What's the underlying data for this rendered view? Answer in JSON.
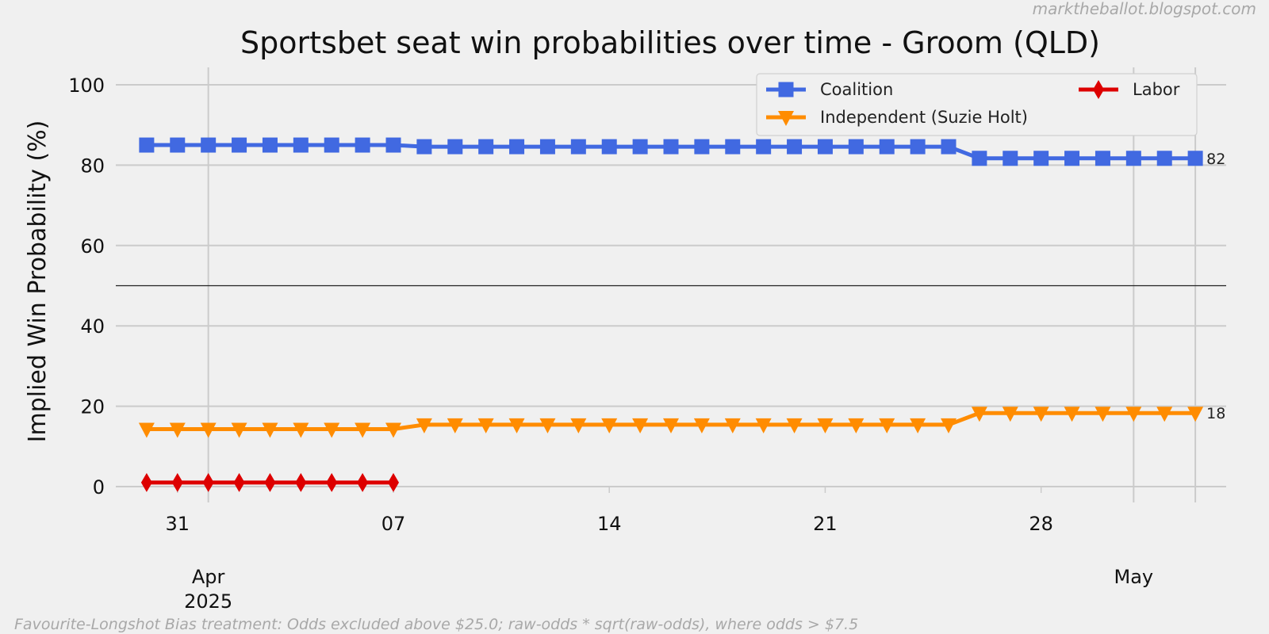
{
  "watermark": "marktheballot.blogspot.com",
  "footnote": "Favourite-Longshot Bias treatment: Odds excluded above $25.0; raw-odds * sqrt(raw-odds), where odds > $7.5",
  "chart_data": {
    "type": "line",
    "title": "Sportsbet seat win probabilities over time - Groom (QLD)",
    "xlabel": "",
    "ylabel": "Implied Win Probability (%)",
    "ylim": [
      0,
      100
    ],
    "yticks": [
      "0",
      "20",
      "40",
      "60",
      "80",
      "100"
    ],
    "xlim": [
      "2025-03-29",
      "2025-05-04"
    ],
    "minor_ticks": [
      {
        "date": "2025-03-31",
        "label": "31"
      },
      {
        "date": "2025-04-07",
        "label": "07"
      },
      {
        "date": "2025-04-14",
        "label": "14"
      },
      {
        "date": "2025-04-21",
        "label": "21"
      },
      {
        "date": "2025-04-28",
        "label": "28"
      }
    ],
    "major_ticks": [
      {
        "date": "2025-04-01",
        "label": "Apr",
        "sublabel": "2025"
      },
      {
        "date": "2025-05-01",
        "label": "May",
        "sublabel": ""
      }
    ],
    "reference_line": 50,
    "grid": true,
    "legend_position": "top-right",
    "series": [
      {
        "name": "Coalition",
        "color": "#4169e1",
        "marker": "square",
        "end_label": "82",
        "points": [
          [
            "2025-03-30",
            85
          ],
          [
            "2025-03-31",
            85
          ],
          [
            "2025-04-01",
            85
          ],
          [
            "2025-04-02",
            85
          ],
          [
            "2025-04-03",
            85
          ],
          [
            "2025-04-04",
            85
          ],
          [
            "2025-04-05",
            85
          ],
          [
            "2025-04-06",
            85
          ],
          [
            "2025-04-07",
            85
          ],
          [
            "2025-04-08",
            84.6
          ],
          [
            "2025-04-09",
            84.6
          ],
          [
            "2025-04-10",
            84.6
          ],
          [
            "2025-04-11",
            84.6
          ],
          [
            "2025-04-12",
            84.6
          ],
          [
            "2025-04-13",
            84.6
          ],
          [
            "2025-04-14",
            84.6
          ],
          [
            "2025-04-15",
            84.6
          ],
          [
            "2025-04-16",
            84.6
          ],
          [
            "2025-04-17",
            84.6
          ],
          [
            "2025-04-18",
            84.6
          ],
          [
            "2025-04-19",
            84.6
          ],
          [
            "2025-04-20",
            84.6
          ],
          [
            "2025-04-21",
            84.6
          ],
          [
            "2025-04-22",
            84.6
          ],
          [
            "2025-04-23",
            84.6
          ],
          [
            "2025-04-24",
            84.6
          ],
          [
            "2025-04-25",
            84.6
          ],
          [
            "2025-04-26",
            81.7
          ],
          [
            "2025-04-27",
            81.7
          ],
          [
            "2025-04-28",
            81.7
          ],
          [
            "2025-04-29",
            81.7
          ],
          [
            "2025-04-30",
            81.7
          ],
          [
            "2025-05-01",
            81.7
          ],
          [
            "2025-05-02",
            81.7
          ],
          [
            "2025-05-03",
            81.7
          ]
        ]
      },
      {
        "name": "Independent (Suzie Holt)",
        "color": "#ff8c00",
        "marker": "triangle-down",
        "end_label": "18",
        "points": [
          [
            "2025-03-30",
            14.3
          ],
          [
            "2025-03-31",
            14.3
          ],
          [
            "2025-04-01",
            14.3
          ],
          [
            "2025-04-02",
            14.3
          ],
          [
            "2025-04-03",
            14.3
          ],
          [
            "2025-04-04",
            14.3
          ],
          [
            "2025-04-05",
            14.3
          ],
          [
            "2025-04-06",
            14.3
          ],
          [
            "2025-04-07",
            14.3
          ],
          [
            "2025-04-08",
            15.4
          ],
          [
            "2025-04-09",
            15.4
          ],
          [
            "2025-04-10",
            15.4
          ],
          [
            "2025-04-11",
            15.4
          ],
          [
            "2025-04-12",
            15.4
          ],
          [
            "2025-04-13",
            15.4
          ],
          [
            "2025-04-14",
            15.4
          ],
          [
            "2025-04-15",
            15.4
          ],
          [
            "2025-04-16",
            15.4
          ],
          [
            "2025-04-17",
            15.4
          ],
          [
            "2025-04-18",
            15.4
          ],
          [
            "2025-04-19",
            15.4
          ],
          [
            "2025-04-20",
            15.4
          ],
          [
            "2025-04-21",
            15.4
          ],
          [
            "2025-04-22",
            15.4
          ],
          [
            "2025-04-23",
            15.4
          ],
          [
            "2025-04-24",
            15.4
          ],
          [
            "2025-04-25",
            15.4
          ],
          [
            "2025-04-26",
            18.3
          ],
          [
            "2025-04-27",
            18.3
          ],
          [
            "2025-04-28",
            18.3
          ],
          [
            "2025-04-29",
            18.3
          ],
          [
            "2025-04-30",
            18.3
          ],
          [
            "2025-05-01",
            18.3
          ],
          [
            "2025-05-02",
            18.3
          ],
          [
            "2025-05-03",
            18.3
          ]
        ]
      },
      {
        "name": "Labor",
        "color": "#dd0000",
        "marker": "diamond",
        "end_label": "",
        "points": [
          [
            "2025-03-30",
            1
          ],
          [
            "2025-03-31",
            1
          ],
          [
            "2025-04-01",
            1
          ],
          [
            "2025-04-02",
            1
          ],
          [
            "2025-04-03",
            1
          ],
          [
            "2025-04-04",
            1
          ],
          [
            "2025-04-05",
            1
          ],
          [
            "2025-04-06",
            1
          ],
          [
            "2025-04-07",
            1
          ]
        ]
      }
    ]
  }
}
